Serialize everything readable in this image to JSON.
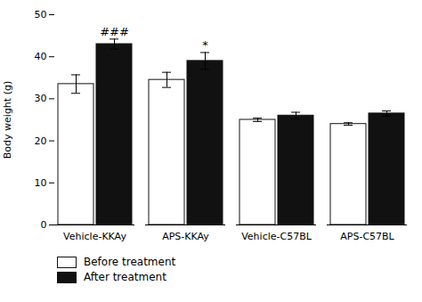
{
  "chart_data": {
    "type": "bar",
    "categories": [
      "Vehicle-KKAy",
      "APS-KKAy",
      "Vehicle-C57BL",
      "APS-C57BL"
    ],
    "series": [
      {
        "name": "Before treatment",
        "color": "#ffffff",
        "values": [
          33.5,
          34.5,
          25.0,
          24.0
        ],
        "errors": [
          2.2,
          1.8,
          0.4,
          0.3
        ]
      },
      {
        "name": "After treatment",
        "color": "#111111",
        "values": [
          43.0,
          39.0,
          26.0,
          26.5
        ],
        "errors": [
          1.2,
          2.0,
          0.8,
          0.6
        ]
      }
    ],
    "ylabel": "Body weight (g)",
    "ylim": [
      0,
      50
    ],
    "yticks": [
      0,
      10,
      20,
      30,
      40,
      50
    ],
    "legend": "lower left",
    "annotations": [
      {
        "text": "###",
        "category": "Vehicle-KKAy",
        "series": "After treatment"
      },
      {
        "text": "*",
        "category": "APS-KKAy",
        "series": "After treatment"
      }
    ]
  }
}
